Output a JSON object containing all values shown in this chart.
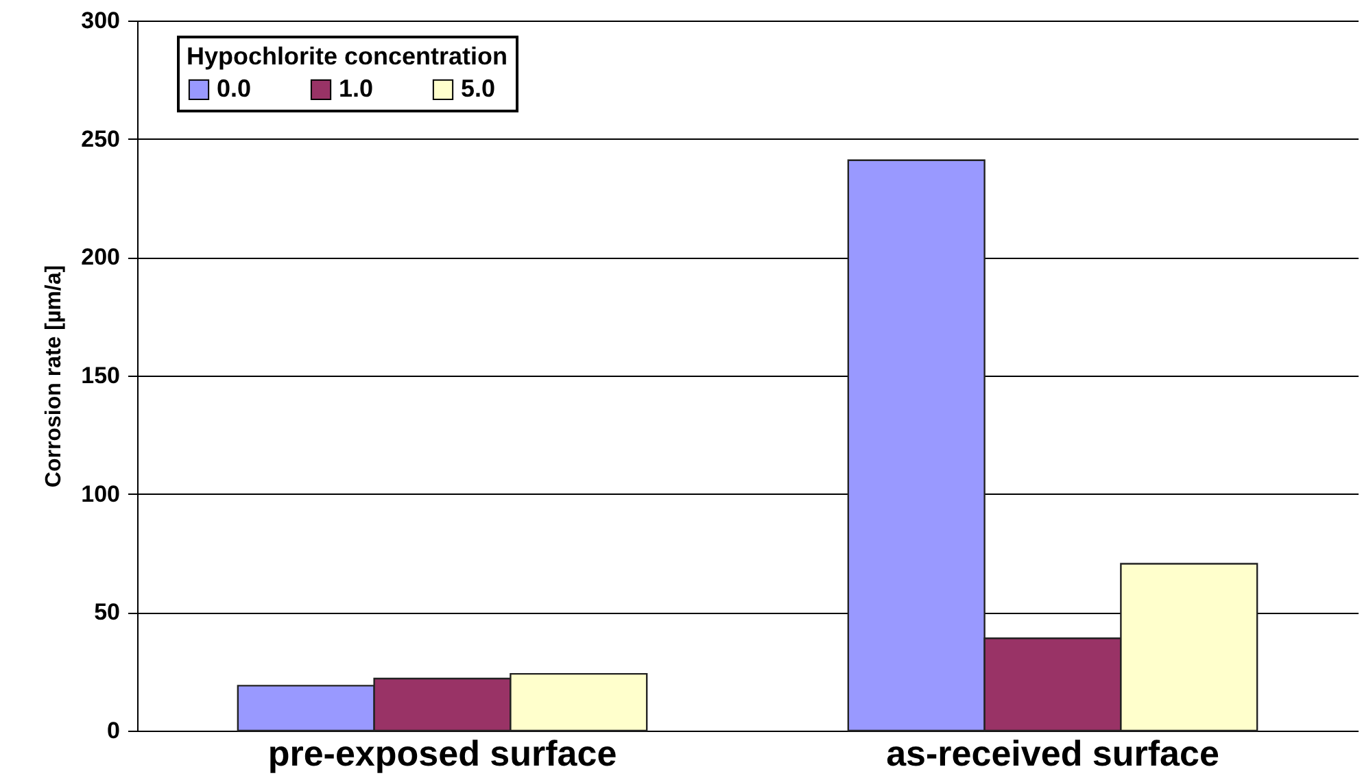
{
  "chart_data": {
    "type": "bar",
    "ylabel": "Corrosion rate [µm/a]",
    "legend_title": "Hypochlorite concentration",
    "categories": [
      "pre-exposed surface",
      "as-received surface"
    ],
    "series": [
      {
        "name": "0.0",
        "color": "#9999ff",
        "values": [
          19,
          241
        ]
      },
      {
        "name": "1.0",
        "color": "#993366",
        "values": [
          22,
          39
        ]
      },
      {
        "name": "5.0",
        "color": "#ffffcc",
        "values": [
          24,
          70.5
        ]
      }
    ],
    "ylim": [
      0,
      300
    ],
    "yticks": [
      0,
      50,
      100,
      150,
      200,
      250,
      300
    ],
    "grid": "y",
    "legend": "top left"
  }
}
